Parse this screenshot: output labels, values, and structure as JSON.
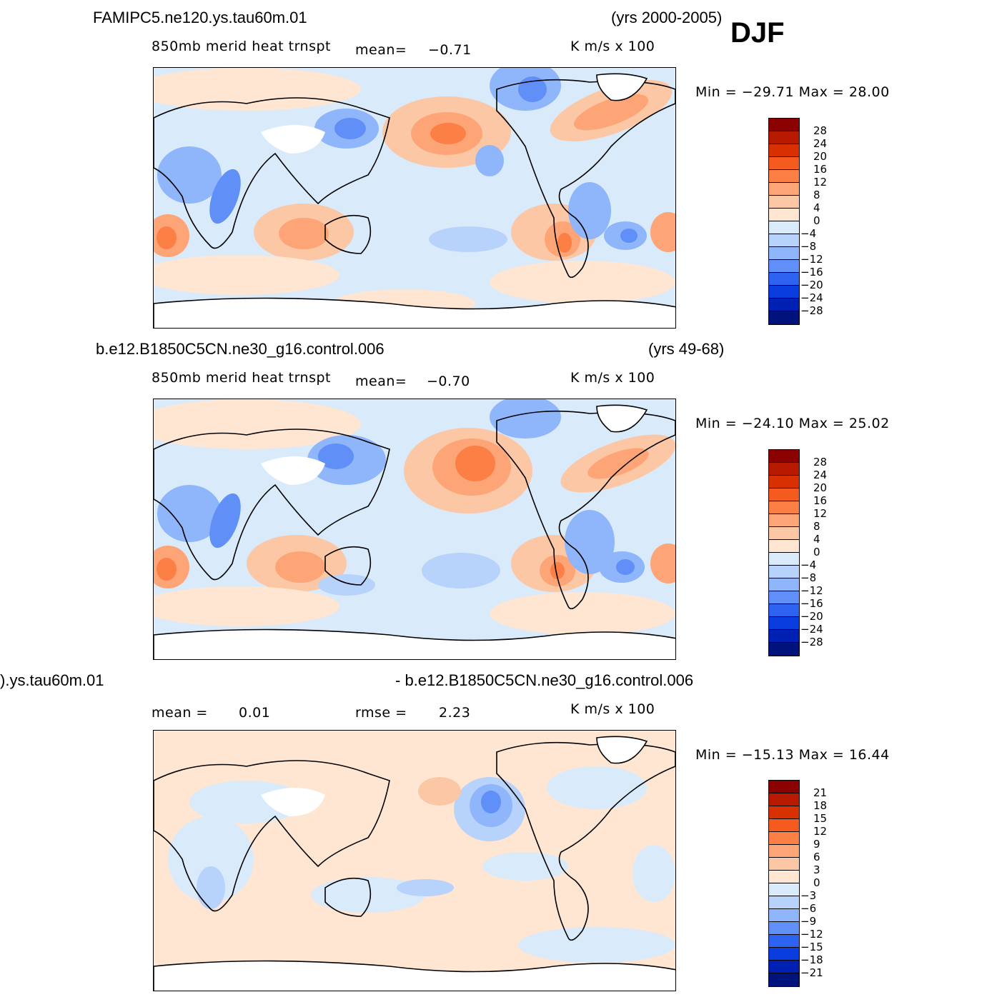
{
  "season": "DJF",
  "panels": [
    {
      "case": "FAMIPC5.ne120.ys.tau60m.01",
      "years": "(yrs 2000-2005)",
      "variable": "850mb  merid  heat  trnspt",
      "mean_label": "mean=",
      "mean_value": "−0.71",
      "units": "K  m/s  x  100",
      "minmax": "Min  =  −29.71  Max  =    28.00"
    },
    {
      "case": "b.e12.B1850C5CN.ne30_g16.control.006",
      "years": "(yrs 49-68)",
      "variable": "850mb  merid  heat  trnspt",
      "mean_label": "mean=",
      "mean_value": "−0.70",
      "units": "K  m/s  x  100",
      "minmax": "Min  =  −24.10  Max  =    25.02"
    },
    {
      "case_left": ").ys.tau60m.01",
      "case_right": "- b.e12.B1850C5CN.ne30_g16.control.006",
      "mean_label": "mean  =",
      "mean_value": "0.01",
      "rmse_label": "rmse  =",
      "rmse_value": "2.23",
      "units": "K  m/s  x  100",
      "minmax": "Min  =  −15.13  Max  =    16.44"
    }
  ],
  "colorbar_main": {
    "labels": [
      "28",
      "24",
      "20",
      "16",
      "12",
      "8",
      "4",
      "0",
      "−4",
      "−8",
      "−12",
      "−16",
      "−20",
      "−24",
      "−28"
    ],
    "colors": [
      "#8b0000",
      "#b81a00",
      "#d83000",
      "#f55a1e",
      "#fc7f45",
      "#fda577",
      "#fcc7a5",
      "#fee6d2",
      "#d9eafb",
      "#b7d2fb",
      "#8fb5fa",
      "#5f8ff7",
      "#2e62f0",
      "#0a3de0",
      "#0020b4",
      "#00127c"
    ]
  },
  "colorbar_diff": {
    "labels": [
      "21",
      "18",
      "15",
      "12",
      "9",
      "6",
      "3",
      "0",
      "−3",
      "−6",
      "−9",
      "−12",
      "−15",
      "−18",
      "−21"
    ],
    "colors": [
      "#8b0000",
      "#b81a00",
      "#d83000",
      "#f55a1e",
      "#fc7f45",
      "#fda577",
      "#fcc7a5",
      "#fee6d2",
      "#d9eafb",
      "#b7d2fb",
      "#8fb5fa",
      "#5f8ff7",
      "#2e62f0",
      "#0a3de0",
      "#0020b4",
      "#00127c"
    ]
  }
}
